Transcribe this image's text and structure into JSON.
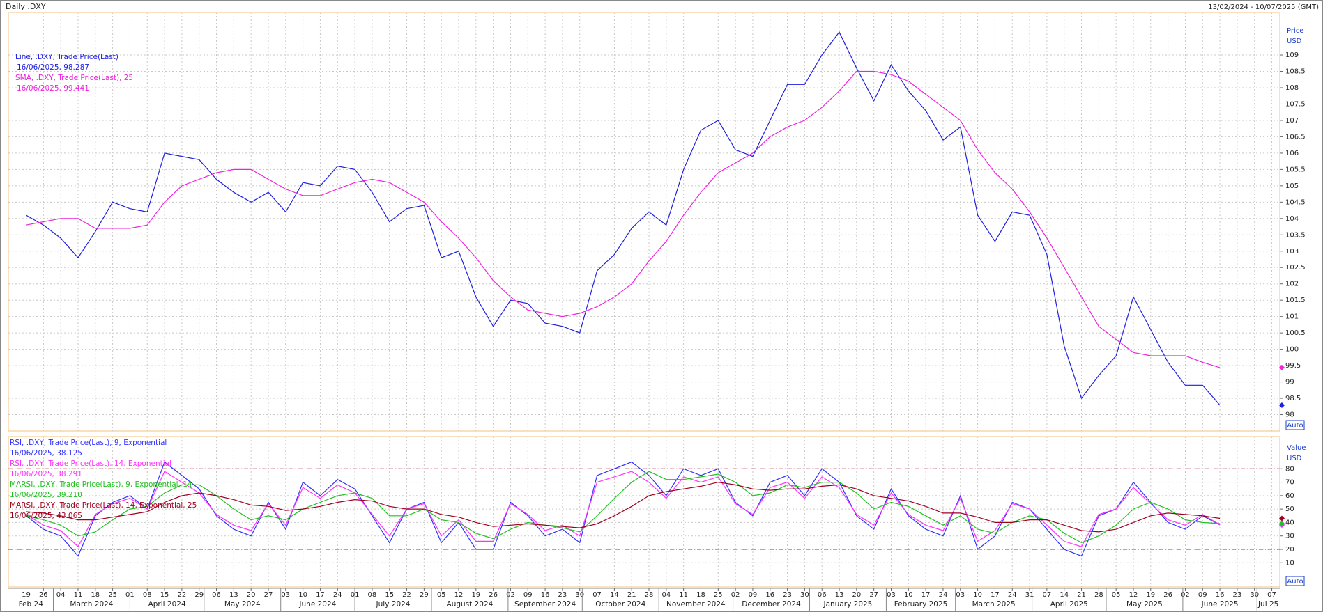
{
  "header": {
    "title": "Daily .DXY",
    "range": "13/02/2024 - 10/07/2025 (GMT)"
  },
  "x_axis": {
    "categories": [
      "19",
      "26",
      "04",
      "11",
      "18",
      "25",
      "01",
      "08",
      "15",
      "22",
      "29",
      "06",
      "13",
      "20",
      "27",
      "03",
      "10",
      "17",
      "24",
      "01",
      "08",
      "15",
      "22",
      "29",
      "05",
      "12",
      "19",
      "26",
      "02",
      "09",
      "16",
      "23",
      "30",
      "07",
      "14",
      "21",
      "28",
      "04",
      "11",
      "18",
      "25",
      "02",
      "09",
      "16",
      "23",
      "30",
      "06",
      "13",
      "20",
      "27",
      "03",
      "10",
      "17",
      "24",
      "03",
      "10",
      "17",
      "24",
      "31",
      "07",
      "14",
      "21",
      "28",
      "05",
      "12",
      "19",
      "26",
      "02",
      "09",
      "16",
      "23",
      "30",
      "07"
    ],
    "months": [
      "Feb 24",
      "March 2024",
      "April 2024",
      "May 2024",
      "June 2024",
      "July 2024",
      "August 2024",
      "September 2024",
      "October 2024",
      "November 2024",
      "December 2024",
      "January 2025",
      "February 2025",
      "March 2025",
      "April 2025",
      "May 2025",
      "June 2025",
      "Jul 25"
    ]
  },
  "chart_data": [
    {
      "type": "line",
      "y_label": [
        "Price",
        "USD"
      ],
      "auto": "Auto",
      "ylim": [
        97.5,
        110.3
      ],
      "yticks": [
        98,
        98.5,
        99,
        99.5,
        100,
        100.5,
        101,
        101.5,
        102,
        102.5,
        103,
        103.5,
        104,
        104.5,
        105,
        105.5,
        106,
        106.5,
        107,
        107.5,
        108,
        108.5,
        109
      ],
      "grid": true,
      "series": [
        {
          "name": "Line, .DXY, Trade Price(Last)",
          "last": "16/06/2025, 98.287",
          "color": "#1f1fe0",
          "values": [
            104.1,
            103.8,
            103.4,
            102.8,
            103.6,
            104.5,
            104.3,
            104.2,
            106.0,
            105.9,
            105.8,
            105.2,
            104.8,
            104.5,
            104.8,
            104.2,
            105.1,
            105.0,
            105.6,
            105.5,
            104.8,
            103.9,
            104.3,
            104.4,
            102.8,
            103.0,
            101.6,
            100.7,
            101.5,
            101.4,
            100.8,
            100.7,
            100.5,
            102.4,
            102.9,
            103.7,
            104.2,
            103.8,
            105.5,
            106.7,
            107.0,
            106.1,
            105.9,
            107.0,
            108.1,
            108.1,
            109.0,
            109.7,
            108.6,
            107.6,
            108.7,
            107.9,
            107.3,
            106.4,
            106.8,
            104.1,
            103.3,
            104.2,
            104.1,
            102.9,
            100.1,
            98.5,
            99.2,
            99.8,
            101.6,
            100.6,
            99.6,
            98.9,
            98.9,
            98.287,
            null,
            null,
            null
          ]
        },
        {
          "name": "SMA, .DXY, Trade Price(Last), 25",
          "last": "16/06/2025, 99.441",
          "color": "#ee22dd",
          "values": [
            103.8,
            103.9,
            104.0,
            104.0,
            103.7,
            103.7,
            103.7,
            103.8,
            104.5,
            105.0,
            105.2,
            105.4,
            105.5,
            105.5,
            105.2,
            104.9,
            104.7,
            104.7,
            104.9,
            105.1,
            105.2,
            105.1,
            104.8,
            104.5,
            103.9,
            103.4,
            102.8,
            102.1,
            101.6,
            101.2,
            101.1,
            101.0,
            101.1,
            101.3,
            101.6,
            102.0,
            102.7,
            103.3,
            104.1,
            104.8,
            105.4,
            105.7,
            106.0,
            106.5,
            106.8,
            107.0,
            107.4,
            107.9,
            108.5,
            108.5,
            108.4,
            108.2,
            107.8,
            107.4,
            107.0,
            106.1,
            105.4,
            104.9,
            104.2,
            103.4,
            102.5,
            101.6,
            100.7,
            100.3,
            99.9,
            99.8,
            99.8,
            99.8,
            99.6,
            99.441,
            null,
            null,
            null
          ]
        }
      ]
    },
    {
      "type": "line",
      "y_label": [
        "Value",
        "USD"
      ],
      "auto": "Auto",
      "ylim": [
        -8,
        104
      ],
      "yticks": [
        10,
        20,
        30,
        40,
        50,
        60,
        70,
        80
      ],
      "ref_lines": [
        80,
        20
      ],
      "grid": true,
      "series": [
        {
          "name": "RSI, .DXY, Trade Price(Last),  9, Exponential",
          "last": "16/06/2025, 38.125",
          "color": "#3030ff",
          "values": [
            45,
            35,
            30,
            15,
            45,
            55,
            60,
            50,
            85,
            75,
            65,
            45,
            35,
            30,
            55,
            35,
            70,
            60,
            72,
            65,
            45,
            25,
            50,
            55,
            25,
            40,
            20,
            20,
            55,
            45,
            30,
            35,
            25,
            75,
            80,
            85,
            75,
            60,
            80,
            75,
            80,
            55,
            45,
            70,
            75,
            60,
            80,
            70,
            45,
            35,
            65,
            45,
            35,
            30,
            60,
            20,
            30,
            55,
            50,
            35,
            20,
            15,
            45,
            50,
            70,
            55,
            40,
            35,
            45,
            38.125,
            null,
            null,
            null
          ]
        },
        {
          "name": "RSI, .DXY, Trade Price(Last),  14, Exponential",
          "last": "16/06/2025, 38.291",
          "color": "#ff30ff",
          "values": [
            46,
            38,
            34,
            22,
            46,
            54,
            58,
            50,
            78,
            70,
            62,
            46,
            38,
            34,
            54,
            38,
            66,
            58,
            68,
            62,
            46,
            30,
            50,
            54,
            30,
            42,
            26,
            26,
            54,
            46,
            34,
            38,
            30,
            70,
            74,
            78,
            70,
            58,
            74,
            70,
            74,
            54,
            46,
            66,
            70,
            58,
            74,
            66,
            46,
            38,
            62,
            46,
            38,
            34,
            58,
            26,
            34,
            54,
            50,
            38,
            26,
            22,
            46,
            50,
            66,
            54,
            42,
            38,
            46,
            38.291,
            null,
            null,
            null
          ]
        },
        {
          "name": "MARSI, .DXY, Trade Price(Last),  9, Exponential, 14",
          "last": "16/06/2025, 39.210",
          "color": "#22c022",
          "values": [
            45,
            42,
            38,
            30,
            33,
            42,
            50,
            52,
            62,
            68,
            68,
            60,
            50,
            42,
            45,
            42,
            50,
            55,
            60,
            62,
            58,
            45,
            45,
            50,
            42,
            40,
            32,
            28,
            35,
            40,
            38,
            36,
            33,
            45,
            58,
            70,
            78,
            72,
            72,
            74,
            76,
            70,
            60,
            62,
            68,
            66,
            70,
            70,
            62,
            50,
            55,
            52,
            45,
            38,
            45,
            35,
            32,
            40,
            45,
            42,
            32,
            25,
            30,
            38,
            50,
            55,
            50,
            42,
            40,
            39.21,
            null,
            null,
            null
          ]
        },
        {
          "name": "MARSI, .DXY, Trade Price(Last),  14, Exponential, 25",
          "last": "16/06/2025, 43.065",
          "color": "#a00020",
          "values": [
            48,
            47,
            45,
            42,
            42,
            44,
            46,
            48,
            55,
            60,
            62,
            60,
            57,
            53,
            52,
            49,
            50,
            52,
            55,
            57,
            56,
            52,
            50,
            50,
            46,
            44,
            40,
            37,
            38,
            39,
            38,
            37,
            36,
            39,
            45,
            52,
            60,
            63,
            65,
            67,
            70,
            68,
            65,
            64,
            65,
            65,
            67,
            68,
            65,
            60,
            58,
            56,
            52,
            47,
            47,
            44,
            40,
            40,
            42,
            42,
            38,
            34,
            33,
            35,
            40,
            45,
            47,
            46,
            45,
            43.065,
            null,
            null,
            null
          ]
        }
      ]
    }
  ]
}
